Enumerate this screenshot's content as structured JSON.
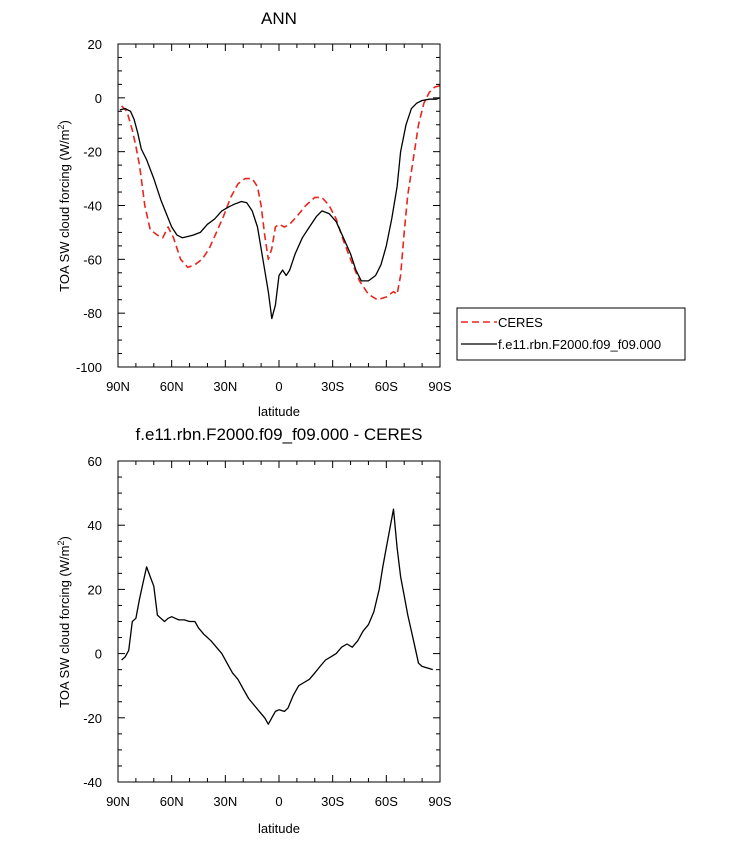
{
  "chart_data": [
    {
      "type": "line",
      "title": "ANN",
      "xlabel": "latitude",
      "ylabel": "TOA SW cloud forcing (W/m",
      "ylabel_sup": "2",
      "ylabel_end": ")",
      "xlim": [
        90,
        -90
      ],
      "ylim": [
        -100,
        20
      ],
      "x_tick_values": [
        90,
        60,
        30,
        0,
        -30,
        -60,
        -90
      ],
      "x_tick_labels": [
        "90N",
        "60N",
        "30N",
        "0",
        "30S",
        "60S",
        "90S"
      ],
      "y_tick_values": [
        20,
        0,
        -20,
        -40,
        -60,
        -80,
        -100
      ],
      "y_tick_labels": [
        "20",
        "0",
        "-20",
        "-40",
        "-60",
        "-80",
        "-100"
      ],
      "legend_position": "right",
      "series": [
        {
          "name": "CERES",
          "color": "#e8261d",
          "dash": "dashed",
          "points": [
            [
              88,
              -3
            ],
            [
              85,
              -5
            ],
            [
              82,
              -12
            ],
            [
              80,
              -18
            ],
            [
              78,
              -25
            ],
            [
              75,
              -40
            ],
            [
              72,
              -49
            ],
            [
              68,
              -51
            ],
            [
              65,
              -52
            ],
            [
              62,
              -48
            ],
            [
              59,
              -52
            ],
            [
              55,
              -60
            ],
            [
              51,
              -63
            ],
            [
              47,
              -62
            ],
            [
              43,
              -60
            ],
            [
              39,
              -56
            ],
            [
              35,
              -50
            ],
            [
              31,
              -44
            ],
            [
              27,
              -37
            ],
            [
              23,
              -32
            ],
            [
              19,
              -30
            ],
            [
              15,
              -30
            ],
            [
              12,
              -33
            ],
            [
              10,
              -40
            ],
            [
              8,
              -51
            ],
            [
              6,
              -60
            ],
            [
              4,
              -56
            ],
            [
              2,
              -48
            ],
            [
              0,
              -47
            ],
            [
              -3,
              -48
            ],
            [
              -6,
              -47
            ],
            [
              -10,
              -44
            ],
            [
              -15,
              -40
            ],
            [
              -20,
              -37
            ],
            [
              -24,
              -37
            ],
            [
              -28,
              -40
            ],
            [
              -32,
              -45
            ],
            [
              -36,
              -53
            ],
            [
              -40,
              -60
            ],
            [
              -45,
              -68
            ],
            [
              -50,
              -73
            ],
            [
              -55,
              -75
            ],
            [
              -60,
              -74
            ],
            [
              -64,
              -72
            ],
            [
              -66,
              -73
            ],
            [
              -68,
              -66
            ],
            [
              -70,
              -50
            ],
            [
              -72,
              -36
            ],
            [
              -75,
              -23
            ],
            [
              -78,
              -10
            ],
            [
              -81,
              -2
            ],
            [
              -84,
              2
            ],
            [
              -87,
              4
            ],
            [
              -90,
              4.5
            ]
          ]
        },
        {
          "name": "f.e11.rbn.F2000.f09_f09.000",
          "color": "#000000",
          "dash": "solid",
          "points": [
            [
              89,
              -4.5
            ],
            [
              86,
              -4
            ],
            [
              83,
              -5
            ],
            [
              81,
              -8
            ],
            [
              79,
              -13
            ],
            [
              77,
              -19
            ],
            [
              74,
              -23
            ],
            [
              70,
              -30
            ],
            [
              66,
              -38
            ],
            [
              63,
              -43
            ],
            [
              60,
              -48
            ],
            [
              57,
              -51
            ],
            [
              54,
              -52
            ],
            [
              51,
              -51.5
            ],
            [
              48,
              -51
            ],
            [
              44,
              -50
            ],
            [
              40,
              -47
            ],
            [
              36,
              -45
            ],
            [
              32,
              -42
            ],
            [
              28,
              -40.5
            ],
            [
              25,
              -39.5
            ],
            [
              21,
              -38.5
            ],
            [
              18,
              -39
            ],
            [
              15,
              -42
            ],
            [
              12,
              -48
            ],
            [
              9,
              -60
            ],
            [
              6,
              -72
            ],
            [
              4,
              -82
            ],
            [
              2,
              -77
            ],
            [
              0,
              -66
            ],
            [
              -2,
              -64
            ],
            [
              -4,
              -66
            ],
            [
              -6,
              -64
            ],
            [
              -9,
              -58
            ],
            [
              -13,
              -52
            ],
            [
              -17,
              -48
            ],
            [
              -21,
              -44
            ],
            [
              -24,
              -42
            ],
            [
              -28,
              -43
            ],
            [
              -32,
              -46
            ],
            [
              -36,
              -52
            ],
            [
              -40,
              -58
            ],
            [
              -43,
              -64
            ],
            [
              -46,
              -68
            ],
            [
              -50,
              -68
            ],
            [
              -54,
              -66
            ],
            [
              -57,
              -62
            ],
            [
              -60,
              -55
            ],
            [
              -63,
              -45
            ],
            [
              -66,
              -33
            ],
            [
              -68,
              -20
            ],
            [
              -71,
              -10
            ],
            [
              -74,
              -4
            ],
            [
              -77,
              -2
            ],
            [
              -80,
              -1
            ],
            [
              -84,
              -0.5
            ],
            [
              -88,
              -0.5
            ],
            [
              -90,
              0
            ]
          ]
        }
      ]
    },
    {
      "type": "line",
      "title": "f.e11.rbn.F2000.f09_f09.000 - CERES",
      "xlabel": "latitude",
      "ylabel": "TOA SW cloud forcing (W/m",
      "ylabel_sup": "2",
      "ylabel_end": ")",
      "xlim": [
        90,
        -90
      ],
      "ylim": [
        -40,
        60
      ],
      "x_tick_values": [
        90,
        60,
        30,
        0,
        -30,
        -60,
        -90
      ],
      "x_tick_labels": [
        "90N",
        "60N",
        "30N",
        "0",
        "30S",
        "60S",
        "90S"
      ],
      "y_tick_values": [
        60,
        40,
        20,
        0,
        -20,
        -40
      ],
      "y_tick_labels": [
        "60",
        "40",
        "20",
        "0",
        "-20",
        "-40"
      ],
      "series": [
        {
          "color": "#000000",
          "dash": "solid",
          "points": [
            [
              88,
              -2
            ],
            [
              86,
              -1
            ],
            [
              84,
              1
            ],
            [
              82,
              10
            ],
            [
              80,
              11
            ],
            [
              78,
              17
            ],
            [
              76,
              22
            ],
            [
              74,
              27
            ],
            [
              72,
              24
            ],
            [
              70,
              21
            ],
            [
              68,
              12
            ],
            [
              66,
              11
            ],
            [
              64,
              10
            ],
            [
              62,
              11
            ],
            [
              60,
              11.5
            ],
            [
              58,
              11
            ],
            [
              56,
              10.5
            ],
            [
              53,
              10.5
            ],
            [
              50,
              10
            ],
            [
              47,
              10
            ],
            [
              45,
              8
            ],
            [
              42,
              6
            ],
            [
              38,
              4
            ],
            [
              35,
              2
            ],
            [
              32,
              0
            ],
            [
              29,
              -3
            ],
            [
              26,
              -6
            ],
            [
              23,
              -8
            ],
            [
              20,
              -11
            ],
            [
              17,
              -14
            ],
            [
              14,
              -16
            ],
            [
              11,
              -18
            ],
            [
              8,
              -20
            ],
            [
              6,
              -22
            ],
            [
              4,
              -20
            ],
            [
              2,
              -18
            ],
            [
              0,
              -17.5
            ],
            [
              -3,
              -18
            ],
            [
              -5,
              -17
            ],
            [
              -8,
              -13
            ],
            [
              -11,
              -10
            ],
            [
              -14,
              -9
            ],
            [
              -17,
              -8
            ],
            [
              -20,
              -6
            ],
            [
              -23,
              -4
            ],
            [
              -26,
              -2
            ],
            [
              -29,
              -1
            ],
            [
              -32,
              0
            ],
            [
              -35,
              2
            ],
            [
              -38,
              3
            ],
            [
              -41,
              2
            ],
            [
              -44,
              4
            ],
            [
              -47,
              7
            ],
            [
              -50,
              9
            ],
            [
              -53,
              13
            ],
            [
              -56,
              20
            ],
            [
              -58,
              27
            ],
            [
              -60,
              33
            ],
            [
              -62,
              39
            ],
            [
              -64,
              45
            ],
            [
              -66,
              33
            ],
            [
              -68,
              24
            ],
            [
              -70,
              18
            ],
            [
              -72,
              12
            ],
            [
              -74,
              7
            ],
            [
              -76,
              2
            ],
            [
              -78,
              -3
            ],
            [
              -80,
              -4
            ],
            [
              -83,
              -4.5
            ],
            [
              -86,
              -5
            ]
          ]
        }
      ]
    }
  ]
}
